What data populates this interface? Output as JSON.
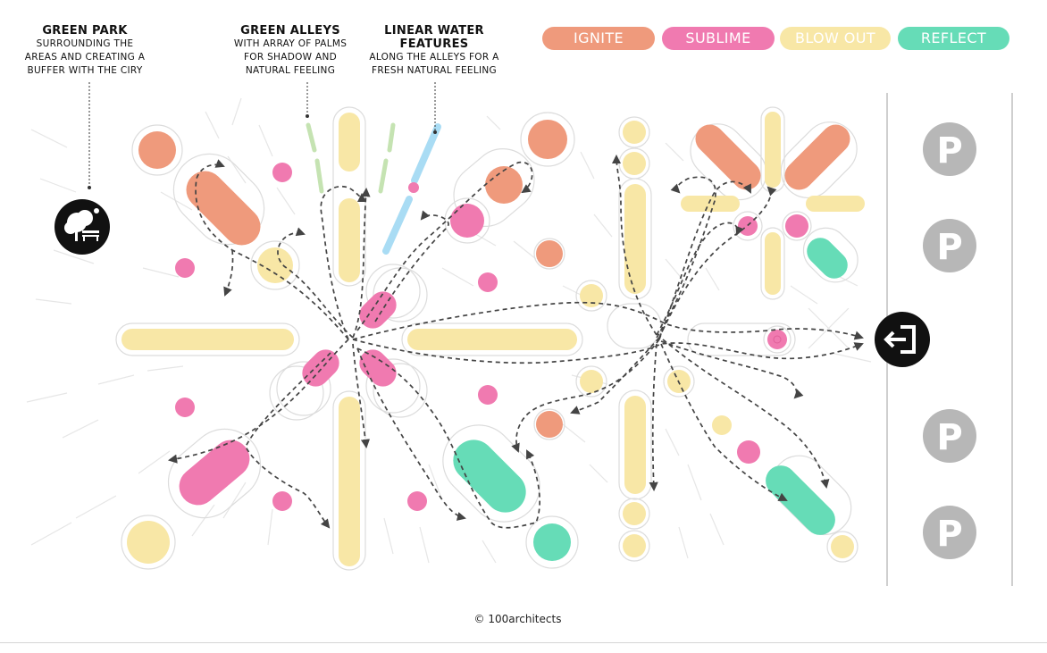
{
  "annotations": {
    "green_park": {
      "title": "GREEN PARK",
      "lines": [
        "SURROUNDING THE",
        "AREAS AND CREATING A",
        "BUFFER WITH THE CIRY"
      ]
    },
    "green_alleys": {
      "title": "GREEN ALLEYS",
      "lines": [
        "WITH ARRAY OF PALMS",
        "FOR SHADOW AND",
        "NATURAL FEELING"
      ]
    },
    "water": {
      "title_lines": [
        "LINEAR WATER",
        "FEATURES"
      ],
      "lines": [
        "ALONG THE ALLEYS FOR A",
        "FRESH NATURAL FEELING"
      ]
    }
  },
  "legend": [
    {
      "label": "IGNITE",
      "color": "#ef9a7c"
    },
    {
      "label": "SUBLIME",
      "color": "#f07ab0"
    },
    {
      "label": "BLOW OUT",
      "color": "#f8e7a6"
    },
    {
      "label": "REFLECT",
      "color": "#66dcb7"
    }
  ],
  "colors": {
    "ignite": "#ef9a7c",
    "sublime": "#f07ab0",
    "blowout": "#f8e7a6",
    "reflect": "#66dcb7",
    "green": "#c5e3b2",
    "water": "#a9dcf4",
    "parking": "#b7b7b7"
  },
  "icons": {
    "park": "park-tree-bench-icon",
    "exit": "exit-arrow-icon",
    "parking": "parking-icon"
  },
  "parking_label": "P",
  "credit": "© 100architects"
}
